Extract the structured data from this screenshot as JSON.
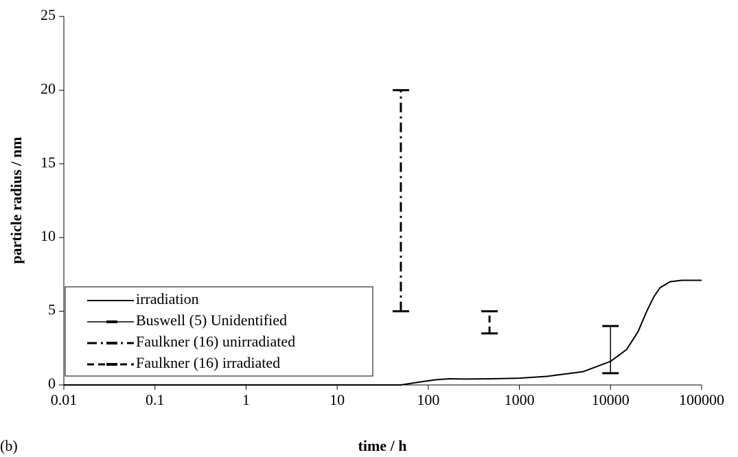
{
  "chart_data": {
    "type": "line",
    "panel_label": "(b)",
    "x_label": "time / h",
    "y_label": "particle radius / nm",
    "xscale": "log",
    "xlim": [
      0.01,
      100000
    ],
    "xticks": [
      0.01,
      0.1,
      1,
      10,
      100,
      1000,
      10000,
      100000
    ],
    "ylim": [
      0,
      25
    ],
    "yticks": [
      0,
      5,
      10,
      15,
      20,
      25
    ],
    "legend": "lower left",
    "series": [
      {
        "name": "irradiation",
        "kind": "line",
        "style": "solid",
        "color": "#000000",
        "x": [
          0.01,
          1,
          10,
          50,
          80,
          120,
          170,
          250,
          500,
          1000,
          2000,
          5000,
          10000,
          15000,
          20000,
          25000,
          30000,
          35000,
          45000,
          60000,
          100000
        ],
        "values": [
          0,
          0,
          0,
          0,
          0.2,
          0.35,
          0.42,
          0.4,
          0.42,
          0.46,
          0.58,
          0.9,
          1.6,
          2.4,
          3.6,
          5.0,
          6.0,
          6.6,
          7.0,
          7.1,
          7.1
        ]
      },
      {
        "name": "Buswell (5) Unidentified",
        "kind": "range",
        "style": "thin",
        "color": "#000000",
        "x": [
          10000
        ],
        "low": [
          0.8
        ],
        "high": [
          4
        ]
      },
      {
        "name": "Faulkner (16) unirradiated",
        "kind": "range",
        "style": "dashdot",
        "color": "#000000",
        "x": [
          50
        ],
        "low": [
          5
        ],
        "high": [
          20
        ]
      },
      {
        "name": "Faulkner (16) irradiated",
        "kind": "range",
        "style": "dash",
        "color": "#000000",
        "x": [
          470
        ],
        "low": [
          3.5
        ],
        "high": [
          5
        ]
      }
    ]
  }
}
